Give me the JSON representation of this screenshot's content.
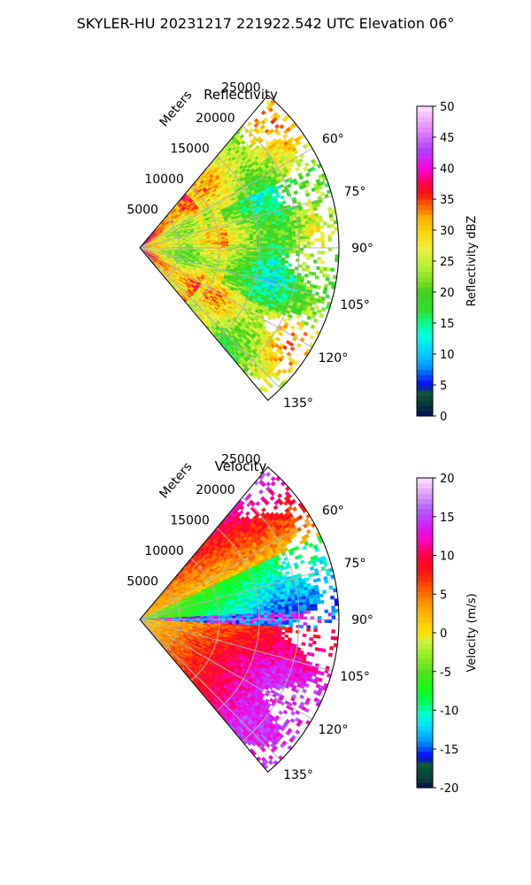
{
  "figure": {
    "suptitle": "SKYLER-HU  20231217  221922.542 UTC Elevation 06°"
  },
  "chart_data": [
    {
      "type": "heatmap",
      "title": "Reflectivity",
      "range_axis_label": "Meters",
      "range_ticks": [
        "5000",
        "10000",
        "15000",
        "20000",
        "25000"
      ],
      "range_tick_values": [
        5000,
        10000,
        15000,
        20000,
        25000
      ],
      "range_max": 25000,
      "angle_ticks": [
        "60°",
        "75°",
        "90°",
        "105°",
        "120°",
        "135°"
      ],
      "angle_tick_values": [
        60,
        75,
        90,
        105,
        120,
        135
      ],
      "angle_min": 40,
      "angle_max": 140,
      "grid": true,
      "colorbar": {
        "label": "Reflectivity dBZ",
        "min": 0,
        "max": 50,
        "ticks": [
          "0",
          "5",
          "10",
          "15",
          "20",
          "25",
          "30",
          "35",
          "40",
          "45",
          "50"
        ],
        "tick_values": [
          0,
          5,
          10,
          15,
          20,
          25,
          30,
          35,
          40,
          45,
          50
        ],
        "stops": [
          [
            0,
            "#000a5a"
          ],
          [
            2,
            "#0a3a3a"
          ],
          [
            4,
            "#0a5a3a"
          ],
          [
            5,
            "#0000ff"
          ],
          [
            8,
            "#0096ff"
          ],
          [
            10,
            "#00c8ff"
          ],
          [
            13,
            "#00ffe0"
          ],
          [
            15,
            "#00ff90"
          ],
          [
            17,
            "#30e030"
          ],
          [
            20,
            "#40d020"
          ],
          [
            22,
            "#80e020"
          ],
          [
            24,
            "#b0f030"
          ],
          [
            27,
            "#f0f040"
          ],
          [
            30,
            "#ffd000"
          ],
          [
            32,
            "#ffb000"
          ],
          [
            34,
            "#ff6000"
          ],
          [
            36,
            "#ff1010"
          ],
          [
            38,
            "#ff0060"
          ],
          [
            40,
            "#ff00e0"
          ],
          [
            43,
            "#b040ff"
          ],
          [
            46,
            "#e080ff"
          ],
          [
            50,
            "#ffe0ff"
          ]
        ]
      },
      "field_description": "Values mostly 18 to 33 dBZ; core 33 to 38 dBZ near radar on upper/lower edges; green 18 to 24 dBZ east of 12000 m near 90°.",
      "sample_values": [
        {
          "azimuth": 50,
          "range": 3000,
          "value": 36
        },
        {
          "azimuth": 55,
          "range": 8000,
          "value": 34
        },
        {
          "azimuth": 60,
          "range": 20000,
          "value": 33
        },
        {
          "azimuth": 75,
          "range": 12000,
          "value": 24
        },
        {
          "azimuth": 90,
          "range": 6000,
          "value": 28
        },
        {
          "azimuth": 90,
          "range": 18000,
          "value": 22
        },
        {
          "azimuth": 105,
          "range": 14000,
          "value": 21
        },
        {
          "azimuth": 115,
          "range": 10000,
          "value": 30
        },
        {
          "azimuth": 125,
          "range": 18000,
          "value": 27
        },
        {
          "azimuth": 130,
          "range": 6000,
          "value": 31
        }
      ]
    },
    {
      "type": "heatmap",
      "title": "Velocity",
      "range_axis_label": "Meters",
      "range_ticks": [
        "5000",
        "10000",
        "15000",
        "20000",
        "25000"
      ],
      "range_tick_values": [
        5000,
        10000,
        15000,
        20000,
        25000
      ],
      "range_max": 25000,
      "angle_ticks": [
        "60°",
        "75°",
        "90°",
        "105°",
        "120°",
        "135°"
      ],
      "angle_tick_values": [
        60,
        75,
        90,
        105,
        120,
        135
      ],
      "angle_min": 40,
      "angle_max": 140,
      "grid": true,
      "colorbar": {
        "label": "Velocity (m/s)",
        "min": -20,
        "max": 20,
        "ticks": [
          "-20",
          "-15",
          "-10",
          "-5",
          "0",
          "5",
          "10",
          "15",
          "20"
        ],
        "tick_values": [
          -20,
          -15,
          -10,
          -5,
          0,
          5,
          10,
          15,
          20
        ],
        "stops": [
          [
            -20,
            "#000a5a"
          ],
          [
            -19,
            "#0a3a3a"
          ],
          [
            -17,
            "#0a5a3a"
          ],
          [
            -16,
            "#0000ff"
          ],
          [
            -14,
            "#0096ff"
          ],
          [
            -12,
            "#00e0ff"
          ],
          [
            -10.5,
            "#00ffd0"
          ],
          [
            -9,
            "#00ff60"
          ],
          [
            -7,
            "#10ff10"
          ],
          [
            -5,
            "#50e020"
          ],
          [
            -3,
            "#90f020"
          ],
          [
            -1,
            "#d0f040"
          ],
          [
            0,
            "#ffe000"
          ],
          [
            2,
            "#ffc000"
          ],
          [
            4,
            "#ff9000"
          ],
          [
            6,
            "#ff5000"
          ],
          [
            8,
            "#ff1010"
          ],
          [
            10,
            "#ff0040"
          ],
          [
            12,
            "#ff00c0"
          ],
          [
            14,
            "#d020ff"
          ],
          [
            16,
            "#b060ff"
          ],
          [
            18,
            "#e0a0ff"
          ],
          [
            20,
            "#ffe0ff"
          ]
        ]
      },
      "field_description": "Inbound -15 to -3 m/s north of 90°, thin cyan/purple shear line near 85-92°, outbound 0 to 15 m/s south of 90° increasing with range.",
      "sample_values": [
        {
          "azimuth": 50,
          "range": 20000,
          "value": 14
        },
        {
          "azimuth": 60,
          "range": 12000,
          "value": 2
        },
        {
          "azimuth": 70,
          "range": 8000,
          "value": -6
        },
        {
          "azimuth": 80,
          "range": 10000,
          "value": -10
        },
        {
          "azimuth": 88,
          "range": 16000,
          "value": -14
        },
        {
          "azimuth": 95,
          "range": 10000,
          "value": 6
        },
        {
          "azimuth": 105,
          "range": 18000,
          "value": 12
        },
        {
          "azimuth": 115,
          "range": 12000,
          "value": 4
        },
        {
          "azimuth": 125,
          "range": 16000,
          "value": 9
        },
        {
          "azimuth": 135,
          "range": 20000,
          "value": 14
        }
      ]
    }
  ]
}
